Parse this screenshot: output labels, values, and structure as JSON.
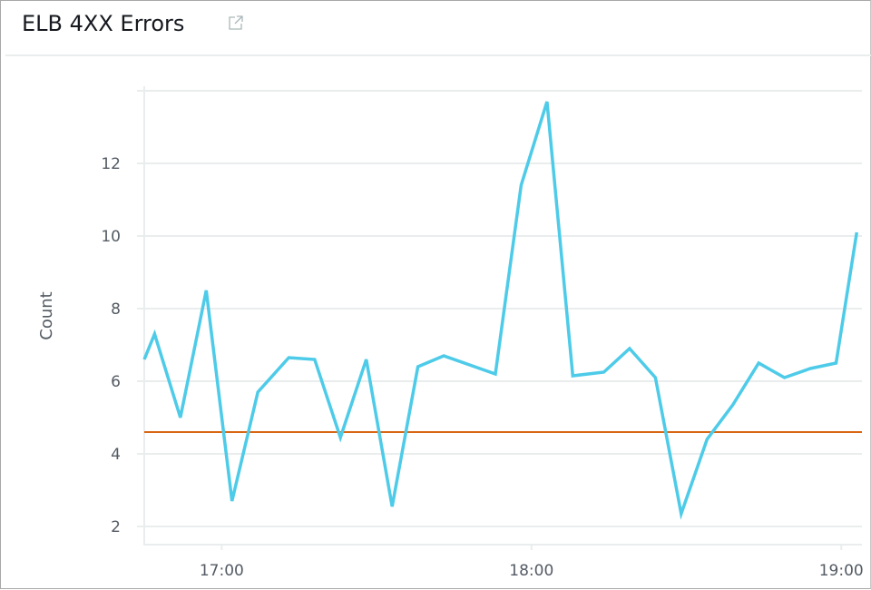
{
  "widget": {
    "title": "ELB 4XX Errors",
    "open_icon": "external-link-icon"
  },
  "chart_data": {
    "type": "line",
    "title": "ELB 4XX Errors",
    "xlabel": "",
    "ylabel": "Count",
    "xlim": [
      "16:45",
      "19:04"
    ],
    "ylim": [
      1.5,
      14
    ],
    "x_ticks": [
      "17:00",
      "18:00",
      "19:00"
    ],
    "y_ticks": [
      2,
      4,
      6,
      8,
      10,
      12
    ],
    "grid": true,
    "series": [
      {
        "color": "#4dcbe8",
        "x": [
          "16:45",
          "16:47",
          "16:52",
          "16:57",
          "17:02",
          "17:07",
          "17:13",
          "17:18",
          "17:23",
          "17:28",
          "17:33",
          "17:38",
          "17:43",
          "17:48",
          "17:53",
          "17:58",
          "18:03",
          "18:08",
          "18:14",
          "18:19",
          "18:24",
          "18:29",
          "18:34",
          "18:39",
          "18:44",
          "18:49",
          "18:54",
          "18:59",
          "19:03"
        ],
        "values": [
          6.6,
          7.3,
          5.0,
          8.5,
          2.7,
          5.7,
          6.65,
          6.6,
          4.45,
          6.6,
          2.55,
          6.4,
          6.7,
          6.45,
          6.2,
          11.4,
          13.7,
          6.15,
          6.25,
          6.9,
          6.1,
          2.35,
          4.4,
          5.35,
          6.5,
          6.1,
          6.35,
          6.5,
          10.1
        ]
      }
    ],
    "threshold": {
      "value": 4.6,
      "color": "#d86613"
    }
  }
}
